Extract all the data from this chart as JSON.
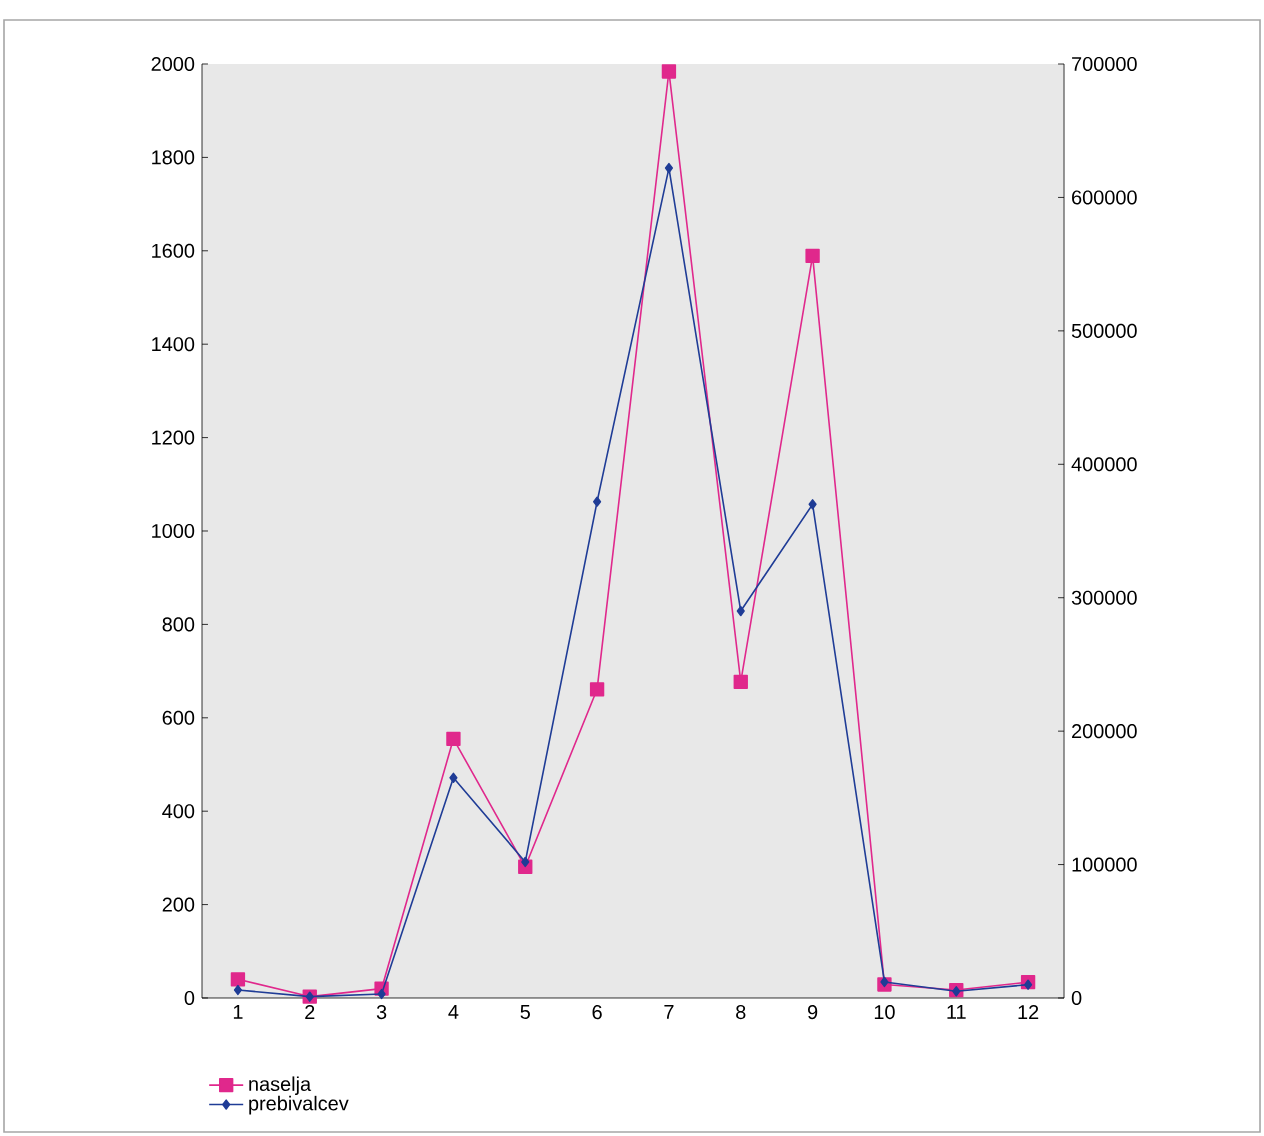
{
  "chart_data": {
    "type": "line",
    "categories": [
      "1",
      "2",
      "3",
      "4",
      "5",
      "6",
      "7",
      "8",
      "9",
      "10",
      "11",
      "12"
    ],
    "series": [
      {
        "name": "naselja",
        "color": "#e0288c",
        "marker": "square",
        "values": [
          40,
          3,
          20,
          555,
          281,
          661,
          1984,
          677,
          1589,
          29,
          17,
          34
        ]
      },
      {
        "name": "prebivalcev",
        "color": "#1f3c96",
        "marker": "diamond",
        "axis": "y2",
        "values": [
          6000,
          1000,
          3000,
          165000,
          102000,
          372000,
          622000,
          290000,
          370000,
          12000,
          5000,
          10000
        ]
      }
    ],
    "ylim": [
      0,
      2000
    ],
    "yticks": [
      0,
      200,
      400,
      600,
      800,
      1000,
      1200,
      1400,
      1600,
      1800,
      2000
    ],
    "y2lim": [
      0,
      700000
    ],
    "y2ticks": [
      0,
      100000,
      200000,
      300000,
      400000,
      500000,
      600000,
      700000
    ],
    "grid": false,
    "legend": "bottom left",
    "line_style": "solid"
  }
}
